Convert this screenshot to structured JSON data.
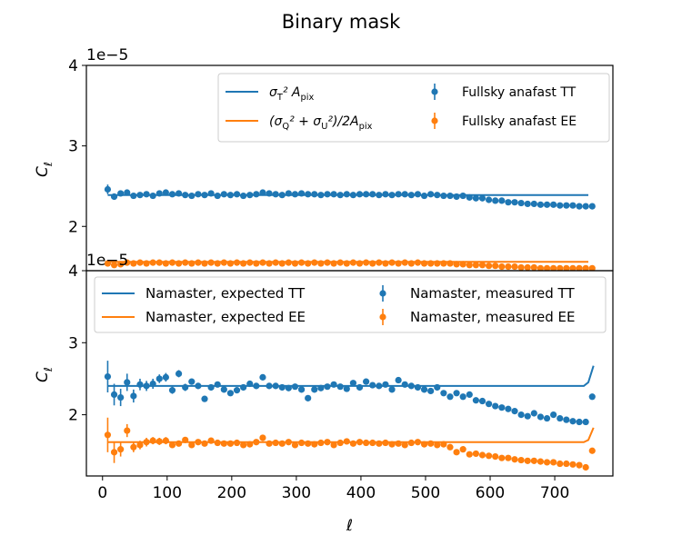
{
  "title": "Binary mask",
  "colors": {
    "tt": "#1f77b4",
    "ee": "#ff7f0e"
  },
  "chart_data": [
    {
      "type": "line+errorbar",
      "xlabel": "",
      "ylabel": "C_ℓ",
      "offset_text": "1e−5",
      "xlim": [
        -25,
        790
      ],
      "ylim": [
        1.45,
        4.0
      ],
      "yticks": [
        2,
        3,
        4
      ],
      "legend_loc": "upper right",
      "legend_cols": 2,
      "legend": [
        "σ_T² A_pix",
        "(σ_Q² + σ_U²)/2A_pix",
        "Fullsky anafast TT",
        "Fullsky anafast EE"
      ],
      "series": [
        {
          "name": "σ_T² A_pix",
          "kind": "line",
          "color": "tt",
          "x": [
            8,
            752
          ],
          "y": [
            2.39,
            2.39
          ]
        },
        {
          "name": "(σ_Q² + σ_U²)/2A_pix",
          "kind": "line",
          "color": "ee",
          "x": [
            8,
            752
          ],
          "y": [
            1.56,
            1.56
          ]
        },
        {
          "name": "Fullsky anafast TT",
          "kind": "points",
          "color": "tt",
          "x": [
            8,
            18,
            28,
            38,
            48,
            58,
            68,
            78,
            88,
            98,
            108,
            118,
            128,
            138,
            148,
            158,
            168,
            178,
            188,
            198,
            208,
            218,
            228,
            238,
            248,
            258,
            268,
            278,
            288,
            298,
            308,
            318,
            328,
            338,
            348,
            358,
            368,
            378,
            388,
            398,
            408,
            418,
            428,
            438,
            448,
            458,
            468,
            478,
            488,
            498,
            508,
            518,
            528,
            538,
            548,
            558,
            568,
            578,
            588,
            598,
            608,
            618,
            628,
            638,
            648,
            658,
            668,
            678,
            688,
            698,
            708,
            718,
            728,
            738,
            748,
            758
          ],
          "y": [
            2.46,
            2.37,
            2.41,
            2.42,
            2.38,
            2.39,
            2.4,
            2.38,
            2.41,
            2.42,
            2.4,
            2.41,
            2.39,
            2.38,
            2.4,
            2.39,
            2.41,
            2.38,
            2.4,
            2.39,
            2.4,
            2.38,
            2.39,
            2.4,
            2.42,
            2.41,
            2.4,
            2.39,
            2.41,
            2.4,
            2.41,
            2.4,
            2.4,
            2.39,
            2.4,
            2.4,
            2.39,
            2.4,
            2.39,
            2.4,
            2.4,
            2.4,
            2.39,
            2.4,
            2.39,
            2.4,
            2.4,
            2.39,
            2.4,
            2.38,
            2.4,
            2.39,
            2.38,
            2.38,
            2.37,
            2.38,
            2.36,
            2.35,
            2.35,
            2.33,
            2.32,
            2.32,
            2.3,
            2.3,
            2.29,
            2.28,
            2.28,
            2.27,
            2.27,
            2.27,
            2.26,
            2.26,
            2.26,
            2.25,
            2.25,
            2.25
          ],
          "yerr": [
            0.06,
            0.04,
            0.03,
            0.03,
            0.02,
            0.02,
            0.02,
            0.02,
            0.02,
            0.02,
            0.02,
            0.02,
            0.01,
            0.01,
            0.01,
            0.01,
            0.01,
            0.01,
            0.01,
            0.01,
            0.01,
            0.01,
            0.01,
            0.01,
            0.01,
            0.01,
            0.01,
            0.01,
            0.01,
            0.01,
            0.01,
            0.01,
            0.01,
            0.01,
            0.01,
            0.01,
            0.01,
            0.01,
            0.01,
            0.01,
            0.01,
            0.01,
            0.01,
            0.01,
            0.01,
            0.01,
            0.01,
            0.01,
            0.01,
            0.01,
            0.01,
            0.01,
            0.01,
            0.01,
            0.01,
            0.01,
            0.01,
            0.01,
            0.01,
            0.01,
            0.01,
            0.01,
            0.01,
            0.01,
            0.01,
            0.01,
            0.01,
            0.01,
            0.01,
            0.01,
            0.01,
            0.01,
            0.01,
            0.01,
            0.01,
            0.01
          ]
        },
        {
          "name": "Fullsky anafast EE",
          "kind": "points",
          "color": "ee",
          "x": [
            8,
            18,
            28,
            38,
            48,
            58,
            68,
            78,
            88,
            98,
            108,
            118,
            128,
            138,
            148,
            158,
            168,
            178,
            188,
            198,
            208,
            218,
            228,
            238,
            248,
            258,
            268,
            278,
            288,
            298,
            308,
            318,
            328,
            338,
            348,
            358,
            368,
            378,
            388,
            398,
            408,
            418,
            428,
            438,
            448,
            458,
            468,
            478,
            488,
            498,
            508,
            518,
            528,
            538,
            548,
            558,
            568,
            578,
            588,
            598,
            608,
            618,
            628,
            638,
            648,
            658,
            668,
            678,
            688,
            698,
            708,
            718,
            728,
            738,
            748,
            758
          ],
          "y": [
            1.54,
            1.52,
            1.53,
            1.55,
            1.54,
            1.55,
            1.54,
            1.55,
            1.55,
            1.54,
            1.55,
            1.54,
            1.55,
            1.54,
            1.55,
            1.54,
            1.55,
            1.54,
            1.55,
            1.54,
            1.55,
            1.54,
            1.55,
            1.54,
            1.55,
            1.54,
            1.55,
            1.54,
            1.55,
            1.54,
            1.55,
            1.54,
            1.55,
            1.54,
            1.55,
            1.54,
            1.55,
            1.54,
            1.55,
            1.54,
            1.55,
            1.54,
            1.55,
            1.54,
            1.55,
            1.54,
            1.55,
            1.54,
            1.55,
            1.54,
            1.54,
            1.54,
            1.54,
            1.54,
            1.53,
            1.53,
            1.52,
            1.52,
            1.52,
            1.51,
            1.51,
            1.5,
            1.5,
            1.5,
            1.49,
            1.49,
            1.49,
            1.48,
            1.48,
            1.48,
            1.48,
            1.48,
            1.48,
            1.48,
            1.48,
            1.48
          ],
          "yerr": [
            0.03,
            0.02,
            0.02,
            0.01,
            0.01,
            0.01,
            0.01,
            0.01,
            0.01,
            0.01,
            0.01,
            0.01,
            0.01,
            0.01,
            0.01,
            0.01,
            0.01,
            0.01,
            0.01,
            0.01,
            0.01,
            0.01,
            0.01,
            0.01,
            0.01,
            0.01,
            0.01,
            0.01,
            0.01,
            0.01,
            0.01,
            0.01,
            0.01,
            0.01,
            0.01,
            0.01,
            0.01,
            0.01,
            0.01,
            0.01,
            0.01,
            0.01,
            0.01,
            0.01,
            0.01,
            0.01,
            0.01,
            0.01,
            0.01,
            0.01,
            0.01,
            0.01,
            0.01,
            0.01,
            0.01,
            0.01,
            0.01,
            0.01,
            0.01,
            0.01,
            0.01,
            0.01,
            0.01,
            0.01,
            0.01,
            0.01,
            0.01,
            0.01,
            0.01,
            0.01,
            0.01,
            0.01,
            0.01,
            0.01,
            0.01,
            0.01
          ]
        }
      ]
    },
    {
      "type": "line+errorbar",
      "xlabel": "ℓ",
      "ylabel": "C_ℓ",
      "offset_text": "1e−5",
      "xlim": [
        -25,
        790
      ],
      "ylim": [
        1.15,
        4.0
      ],
      "yticks": [
        2,
        3,
        4
      ],
      "xticks": [
        0,
        100,
        200,
        300,
        400,
        500,
        600,
        700
      ],
      "legend_loc": "upper right",
      "legend_cols": 2,
      "legend": [
        "Namaster, expected TT",
        "Namaster, expected EE",
        "Namaster, measured TT",
        "Namaster, measured EE"
      ],
      "series": [
        {
          "name": "Namaster, expected TT",
          "kind": "line",
          "color": "tt",
          "x": [
            8,
            12,
            20,
            745,
            752,
            760
          ],
          "y": [
            2.4,
            2.4,
            2.4,
            2.4,
            2.45,
            2.68
          ]
        },
        {
          "name": "Namaster, expected EE",
          "kind": "line",
          "color": "ee",
          "x": [
            8,
            12,
            20,
            745,
            752,
            760
          ],
          "y": [
            1.62,
            1.62,
            1.62,
            1.62,
            1.65,
            1.82
          ]
        },
        {
          "name": "Namaster, measured TT",
          "kind": "points",
          "color": "tt",
          "x": [
            8,
            18,
            28,
            38,
            48,
            58,
            68,
            78,
            88,
            98,
            108,
            118,
            128,
            138,
            148,
            158,
            168,
            178,
            188,
            198,
            208,
            218,
            228,
            238,
            248,
            258,
            268,
            278,
            288,
            298,
            308,
            318,
            328,
            338,
            348,
            358,
            368,
            378,
            388,
            398,
            408,
            418,
            428,
            438,
            448,
            458,
            468,
            478,
            488,
            498,
            508,
            518,
            528,
            538,
            548,
            558,
            568,
            578,
            588,
            598,
            608,
            618,
            628,
            638,
            648,
            658,
            668,
            678,
            688,
            698,
            708,
            718,
            728,
            738,
            748,
            758
          ],
          "y": [
            2.53,
            2.28,
            2.24,
            2.45,
            2.26,
            2.42,
            2.4,
            2.43,
            2.5,
            2.52,
            2.34,
            2.57,
            2.38,
            2.46,
            2.4,
            2.22,
            2.38,
            2.42,
            2.35,
            2.3,
            2.34,
            2.38,
            2.43,
            2.4,
            2.52,
            2.4,
            2.4,
            2.38,
            2.37,
            2.39,
            2.35,
            2.23,
            2.35,
            2.37,
            2.39,
            2.42,
            2.39,
            2.36,
            2.44,
            2.38,
            2.46,
            2.41,
            2.4,
            2.42,
            2.35,
            2.48,
            2.42,
            2.4,
            2.38,
            2.35,
            2.33,
            2.38,
            2.3,
            2.25,
            2.3,
            2.25,
            2.28,
            2.2,
            2.19,
            2.15,
            2.12,
            2.1,
            2.08,
            2.05,
            2.0,
            1.98,
            2.02,
            1.97,
            1.95,
            2.0,
            1.95,
            1.93,
            1.91,
            1.9,
            1.9,
            2.25
          ],
          "yerr": [
            0.22,
            0.15,
            0.12,
            0.12,
            0.09,
            0.08,
            0.07,
            0.07,
            0.06,
            0.06,
            0.05,
            0.05,
            0.05,
            0.04,
            0.04,
            0.04,
            0.04,
            0.04,
            0.03,
            0.03,
            0.03,
            0.03,
            0.03,
            0.03,
            0.03,
            0.03,
            0.03,
            0.03,
            0.03,
            0.03,
            0.02,
            0.02,
            0.02,
            0.02,
            0.02,
            0.02,
            0.02,
            0.02,
            0.02,
            0.02,
            0.02,
            0.02,
            0.02,
            0.02,
            0.02,
            0.02,
            0.02,
            0.02,
            0.02,
            0.02,
            0.02,
            0.02,
            0.02,
            0.02,
            0.02,
            0.02,
            0.02,
            0.02,
            0.02,
            0.02,
            0.02,
            0.02,
            0.02,
            0.02,
            0.02,
            0.02,
            0.02,
            0.02,
            0.02,
            0.02,
            0.02,
            0.02,
            0.02,
            0.02,
            0.02,
            0.02
          ]
        },
        {
          "name": "Namaster, measured EE",
          "kind": "points",
          "color": "ee",
          "x": [
            8,
            18,
            28,
            38,
            48,
            58,
            68,
            78,
            88,
            98,
            108,
            118,
            128,
            138,
            148,
            158,
            168,
            178,
            188,
            198,
            208,
            218,
            228,
            238,
            248,
            258,
            268,
            278,
            288,
            298,
            308,
            318,
            328,
            338,
            348,
            358,
            368,
            378,
            388,
            398,
            408,
            418,
            428,
            438,
            448,
            458,
            468,
            478,
            488,
            498,
            508,
            518,
            528,
            538,
            548,
            558,
            568,
            578,
            588,
            598,
            608,
            618,
            628,
            638,
            648,
            658,
            668,
            678,
            688,
            698,
            708,
            718,
            728,
            738,
            748,
            758
          ],
          "y": [
            1.72,
            1.48,
            1.52,
            1.78,
            1.55,
            1.58,
            1.62,
            1.64,
            1.63,
            1.64,
            1.58,
            1.6,
            1.65,
            1.58,
            1.62,
            1.6,
            1.64,
            1.61,
            1.6,
            1.6,
            1.61,
            1.58,
            1.59,
            1.62,
            1.68,
            1.6,
            1.61,
            1.6,
            1.62,
            1.58,
            1.61,
            1.6,
            1.59,
            1.61,
            1.62,
            1.58,
            1.61,
            1.63,
            1.6,
            1.62,
            1.61,
            1.61,
            1.6,
            1.61,
            1.59,
            1.6,
            1.58,
            1.61,
            1.62,
            1.59,
            1.6,
            1.58,
            1.59,
            1.55,
            1.48,
            1.52,
            1.45,
            1.46,
            1.44,
            1.43,
            1.42,
            1.4,
            1.4,
            1.38,
            1.37,
            1.36,
            1.36,
            1.35,
            1.34,
            1.34,
            1.32,
            1.32,
            1.31,
            1.3,
            1.27,
            1.5
          ],
          "yerr": [
            0.24,
            0.15,
            0.1,
            0.09,
            0.07,
            0.06,
            0.06,
            0.05,
            0.05,
            0.05,
            0.04,
            0.04,
            0.04,
            0.03,
            0.03,
            0.03,
            0.03,
            0.03,
            0.03,
            0.03,
            0.03,
            0.02,
            0.02,
            0.02,
            0.02,
            0.02,
            0.02,
            0.02,
            0.02,
            0.02,
            0.02,
            0.02,
            0.02,
            0.02,
            0.02,
            0.02,
            0.02,
            0.02,
            0.02,
            0.02,
            0.02,
            0.02,
            0.02,
            0.02,
            0.02,
            0.02,
            0.02,
            0.02,
            0.02,
            0.02,
            0.02,
            0.02,
            0.02,
            0.02,
            0.02,
            0.02,
            0.02,
            0.02,
            0.02,
            0.02,
            0.02,
            0.02,
            0.02,
            0.02,
            0.02,
            0.02,
            0.02,
            0.02,
            0.02,
            0.02,
            0.02,
            0.02,
            0.02,
            0.02,
            0.02,
            0.02
          ]
        }
      ]
    }
  ]
}
